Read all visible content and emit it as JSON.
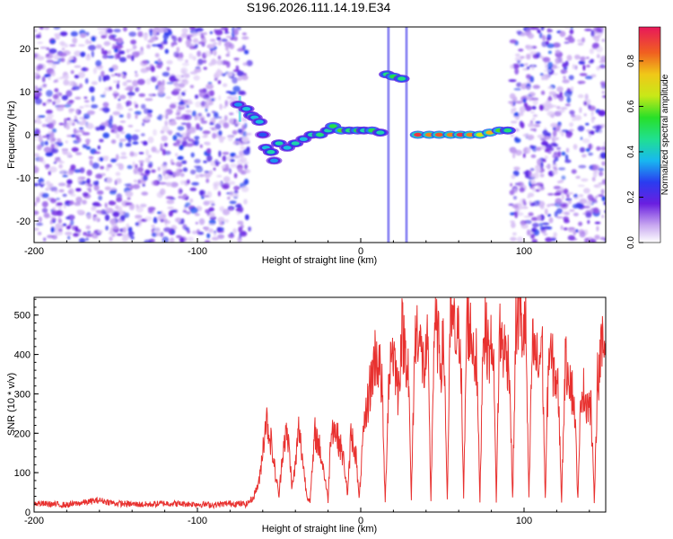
{
  "title": "S196.2026.111.14.19.E34",
  "chart_data": [
    {
      "type": "heatmap",
      "name": "spectrogram",
      "xlabel": "Height of straight line (km)",
      "ylabel": "Frequency (Hz)",
      "xlim": [
        -200,
        150
      ],
      "ylim": [
        -25,
        25
      ],
      "xticks": [
        -200,
        -100,
        0,
        100
      ],
      "yticks": [
        -20,
        -10,
        0,
        10,
        20
      ],
      "colorbar": {
        "label": "Normalized spectral amplitude",
        "range": [
          0,
          0.95
        ],
        "ticks": [
          0.0,
          0.2,
          0.4,
          0.6,
          0.8
        ],
        "tick_labels": [
          "0.0",
          "0.2",
          "0.4",
          "0.6",
          "0.8"
        ]
      },
      "noise_regions": [
        [
          -200,
          -68
        ],
        [
          92,
          150
        ]
      ],
      "features": [
        {
          "height": -75,
          "freq": 7,
          "amp": 0.35
        },
        {
          "height": -70,
          "freq": 6,
          "amp": 0.4
        },
        {
          "height": -67,
          "freq": 4.5,
          "amp": 0.45
        },
        {
          "height": -65,
          "freq": 4,
          "amp": 0.4
        },
        {
          "height": -62,
          "freq": 3,
          "amp": 0.4
        },
        {
          "height": -60,
          "freq": 0,
          "amp": 0.3
        },
        {
          "height": -58,
          "freq": -3,
          "amp": 0.4
        },
        {
          "height": -55,
          "freq": -4,
          "amp": 0.45
        },
        {
          "height": -53,
          "freq": -6,
          "amp": 0.35
        },
        {
          "height": -50,
          "freq": -2,
          "amp": 0.45
        },
        {
          "height": -45,
          "freq": -3,
          "amp": 0.4
        },
        {
          "height": -40,
          "freq": -2,
          "amp": 0.45
        },
        {
          "height": -35,
          "freq": -1,
          "amp": 0.4
        },
        {
          "height": -30,
          "freq": 0,
          "amp": 0.45
        },
        {
          "height": -25,
          "freq": 0,
          "amp": 0.5
        },
        {
          "height": -20,
          "freq": 1,
          "amp": 0.45
        },
        {
          "height": -17,
          "freq": 2,
          "amp": 0.55
        },
        {
          "height": -12,
          "freq": 1,
          "amp": 0.6
        },
        {
          "height": -7,
          "freq": 1,
          "amp": 0.5
        },
        {
          "height": -2,
          "freq": 1,
          "amp": 0.55
        },
        {
          "height": 2,
          "freq": 1,
          "amp": 0.45
        },
        {
          "height": 7,
          "freq": 1,
          "amp": 0.55
        },
        {
          "height": 12,
          "freq": 0.5,
          "amp": 0.45
        },
        {
          "height": 16,
          "freq": 14,
          "amp": 0.5
        },
        {
          "height": 20,
          "freq": 13.5,
          "amp": 0.55
        },
        {
          "height": 25,
          "freq": 13,
          "amp": 0.5
        },
        {
          "height": 35,
          "freq": 0,
          "amp": 0.95
        },
        {
          "height": 42,
          "freq": 0,
          "amp": 0.85
        },
        {
          "height": 48,
          "freq": 0,
          "amp": 0.9
        },
        {
          "height": 55,
          "freq": 0,
          "amp": 0.85
        },
        {
          "height": 61,
          "freq": 0,
          "amp": 0.95
        },
        {
          "height": 67,
          "freq": 0,
          "amp": 0.85
        },
        {
          "height": 73,
          "freq": 0,
          "amp": 0.7
        },
        {
          "height": 79,
          "freq": 0.5,
          "amp": 0.8
        },
        {
          "height": 85,
          "freq": 1,
          "amp": 0.6
        },
        {
          "height": 90,
          "freq": 1,
          "amp": 0.5
        }
      ],
      "bright_streaks": [
        {
          "height": -74,
          "freq_range": [
            3,
            9
          ],
          "amp": 0.3
        },
        {
          "height": 17,
          "freq_range": [
            -25,
            25
          ],
          "amp": 0.15
        },
        {
          "height": 28,
          "freq_range": [
            -25,
            25
          ],
          "amp": 0.15
        }
      ]
    },
    {
      "type": "line",
      "name": "snr",
      "xlabel": "Height of straight line (km)",
      "ylabel": "SNR (10 * v/v)",
      "xlim": [
        -200,
        150
      ],
      "ylim": [
        0,
        545
      ],
      "xticks": [
        -200,
        -100,
        0,
        100
      ],
      "yticks": [
        0,
        100,
        200,
        300,
        400,
        500
      ],
      "color": "#e8312f",
      "series": [
        {
          "name": "SNR",
          "x": [
            -200,
            -190,
            -180,
            -170,
            -160,
            -150,
            -140,
            -130,
            -120,
            -110,
            -100,
            -90,
            -80,
            -70,
            -66,
            -62,
            -60,
            -58,
            -55,
            -52,
            -50,
            -48,
            -46,
            -44,
            -42,
            -40,
            -38,
            -36,
            -33,
            -31,
            -28,
            -25,
            -22,
            -20,
            -18,
            -15,
            -12,
            -10,
            -8,
            -6,
            -3,
            -1,
            1,
            3,
            5,
            7,
            9,
            11,
            13,
            15,
            17,
            19,
            21,
            23,
            25,
            27,
            29,
            31,
            33,
            35,
            37,
            39,
            41,
            43,
            45,
            47,
            49,
            51,
            53,
            55,
            57,
            59,
            61,
            63,
            65,
            67,
            69,
            71,
            73,
            75,
            77,
            79,
            81,
            83,
            85,
            87,
            89,
            91,
            93,
            95,
            97,
            99,
            101,
            103,
            105,
            107,
            109,
            111,
            113,
            115,
            117,
            119,
            121,
            123,
            125,
            127,
            129,
            131,
            133,
            135,
            137,
            139,
            141,
            143,
            145,
            147,
            150
          ],
          "values": [
            22,
            20,
            18,
            24,
            30,
            22,
            20,
            19,
            22,
            21,
            20,
            18,
            22,
            20,
            35,
            80,
            160,
            240,
            180,
            90,
            40,
            150,
            200,
            170,
            60,
            120,
            210,
            150,
            40,
            30,
            200,
            160,
            90,
            30,
            230,
            200,
            160,
            120,
            40,
            200,
            150,
            30,
            160,
            240,
            300,
            350,
            400,
            380,
            320,
            20,
            320,
            430,
            380,
            300,
            460,
            420,
            380,
            30,
            420,
            480,
            400,
            360,
            420,
            30,
            470,
            440,
            380,
            420,
            30,
            500,
            460,
            430,
            470,
            30,
            500,
            460,
            420,
            380,
            30,
            480,
            440,
            400,
            450,
            30,
            460,
            420,
            400,
            380,
            30,
            470,
            520,
            450,
            480,
            30,
            420,
            400,
            360,
            450,
            30,
            400,
            380,
            350,
            300,
            30,
            360,
            380,
            320,
            260,
            30,
            320,
            300,
            280,
            260,
            30,
            340,
            400,
            430
          ]
        }
      ]
    }
  ]
}
